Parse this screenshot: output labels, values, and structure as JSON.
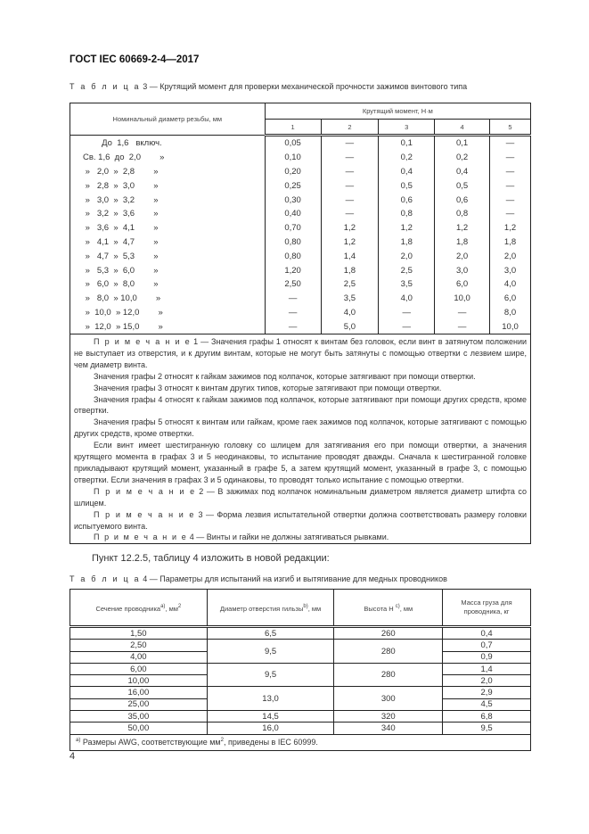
{
  "header": {
    "title": "ГОСТ IEC 60669-2-4—2017"
  },
  "table3": {
    "caption_prefix": "Т а б л и ц а",
    "caption": "3 — Крутящий момент для проверки механической прочности зажимов винтового типа",
    "col0_header": "Номинальный диаметр резьбы, мм",
    "group_header": "Крутящий момент, Н·м",
    "col_numbers": [
      "1",
      "2",
      "3",
      "4",
      "5"
    ],
    "rows": [
      [
        "        До  1,6   включ.",
        "0,05",
        "—",
        "0,1",
        "0,1",
        "—"
      ],
      [
        "Св. 1,6  до  2,0        »",
        "0,10",
        "—",
        "0,2",
        "0,2",
        "—"
      ],
      [
        " »   2,0  »  2,8        »",
        "0,20",
        "—",
        "0,4",
        "0,4",
        "—"
      ],
      [
        " »   2,8  »  3,0        »",
        "0,25",
        "—",
        "0,5",
        "0,5",
        "—"
      ],
      [
        " »   3,0  »  3,2        »",
        "0,30",
        "—",
        "0,6",
        "0,6",
        "—"
      ],
      [
        " »   3,2  »  3,6        »",
        "0,40",
        "—",
        "0,8",
        "0,8",
        "—"
      ],
      [
        " »   3,6  »  4,1        »",
        "0,70",
        "1,2",
        "1,2",
        "1,2",
        "1,2"
      ],
      [
        " »   4,1  »  4,7        »",
        "0,80",
        "1,2",
        "1,8",
        "1,8",
        "1,8"
      ],
      [
        " »   4,7  »  5,3        »",
        "0,80",
        "1,4",
        "2,0",
        "2,0",
        "2,0"
      ],
      [
        " »   5,3  »  6,0        »",
        "1,20",
        "1,8",
        "2,5",
        "3,0",
        "3,0"
      ],
      [
        " »   6,0  »  8,0        »",
        "2,50",
        "2,5",
        "3,5",
        "6,0",
        "4,0"
      ],
      [
        " »   8,0  » 10,0        »",
        "—",
        "3,5",
        "4,0",
        "10,0",
        "6,0"
      ],
      [
        " »  10,0  » 12,0        »",
        "—",
        "4,0",
        "—",
        "—",
        "8,0"
      ],
      [
        " »  12,0  » 15,0        »",
        "—",
        "5,0",
        "—",
        "—",
        "10,0"
      ]
    ],
    "notes": [
      {
        "label": "П р и м е ч а н и е",
        "text": " 1 — Значения графы 1 относят к винтам без головок, если винт в затянутом положении не выступает из отверстия, и к другим винтам, которые не могут быть затянуты с помощью отвертки с лезвием шире, чем диаметр винта."
      },
      {
        "label": "",
        "text": "Значения графы 2 относят к гайкам зажимов под колпачок, которые затягивают при помощи отвертки."
      },
      {
        "label": "",
        "text": "Значения графы 3 относят к винтам других типов, которые затягивают при помощи отвертки."
      },
      {
        "label": "",
        "text": "Значения графы 4 относят к гайкам зажимов под колпачок, которые затягивают при помощи других средств, кроме отвертки."
      },
      {
        "label": "",
        "text": "Значения графы 5 относят к винтам или гайкам, кроме гаек зажимов под колпачок, которые затягивают с помощью других средств, кроме отвертки."
      },
      {
        "label": "",
        "text": "Если  винт имеет шестигранную головку со шлицем для затягивания его при помощи отвертки, а значения крутящего момента в графах 3 и 5 неодинаковы, то испытание проводят дважды. Сначала к шестигранной головке прикладывают крутящий момент, указанный в графе 5, а затем крутящий момент, указанный в графе 3, с помощью отвертки. Если значения в графах 3 и 5 одинаковы, то проводят только испытание с помощью отвертки."
      },
      {
        "label": "П р и м е ч а н и е",
        "text": " 2 — В зажимах под колпачок номинальным диаметром является диаметр штифта со шлицем."
      },
      {
        "label": "П р и м е ч а н и е",
        "text": " 3 — Форма лезвия испытательной отвертки должна соответствовать размеру головки испытуемого винта."
      },
      {
        "label": "П р и м е ч а н и е",
        "text": " 4 — Винты и гайки не должны затягиваться рывками."
      }
    ]
  },
  "instruction": "Пункт 12.2.5, таблицу 4 изложить в новой редакции:",
  "table4": {
    "caption_prefix": "Т а б л и ц а",
    "caption": "4 — Параметры для испытаний на изгиб и вытягивание для медных проводников",
    "headers": [
      {
        "text": "Сечение проводника",
        "sup": "а)",
        "tail": ", мм",
        "sup2": "2"
      },
      {
        "text": "Диаметр отверстия гильзы",
        "sup": "b)",
        "tail": ", мм",
        "sup2": ""
      },
      {
        "text": "Высота H ",
        "sup": "c)",
        "tail": ", мм",
        "sup2": ""
      },
      {
        "text": "Масса груза для проводника, кг",
        "sup": "",
        "tail": "",
        "sup2": ""
      }
    ],
    "groups": [
      {
        "diameter": "6,5",
        "height": "260",
        "rows": [
          {
            "section": "1,50",
            "mass": "0,4"
          }
        ]
      },
      {
        "diameter": "9,5",
        "height": "280",
        "rows": [
          {
            "section": "2,50",
            "mass": "0,7"
          },
          {
            "section": "4,00",
            "mass": "0,9"
          }
        ]
      },
      {
        "diameter": "9,5",
        "height": "280",
        "rows": [
          {
            "section": "6,00",
            "mass": "1,4"
          },
          {
            "section": "10,00",
            "mass": "2,0"
          }
        ]
      },
      {
        "diameter": "13,0",
        "height": "300",
        "rows": [
          {
            "section": "16,00",
            "mass": "2,9"
          },
          {
            "section": "25,00",
            "mass": "4,5"
          }
        ]
      },
      {
        "diameter": "14,5",
        "height": "320",
        "rows": [
          {
            "section": "35,00",
            "mass": "6,8"
          }
        ]
      },
      {
        "diameter": "16,0",
        "height": "340",
        "rows": [
          {
            "section": "50,00",
            "mass": "9,5"
          }
        ]
      }
    ],
    "footnote": {
      "sup": "а)",
      "text": " Размеры AWG, соответствующие мм",
      "sup2": "2",
      "tail": ", приведены в IEC 60999."
    }
  },
  "page_number": "4"
}
